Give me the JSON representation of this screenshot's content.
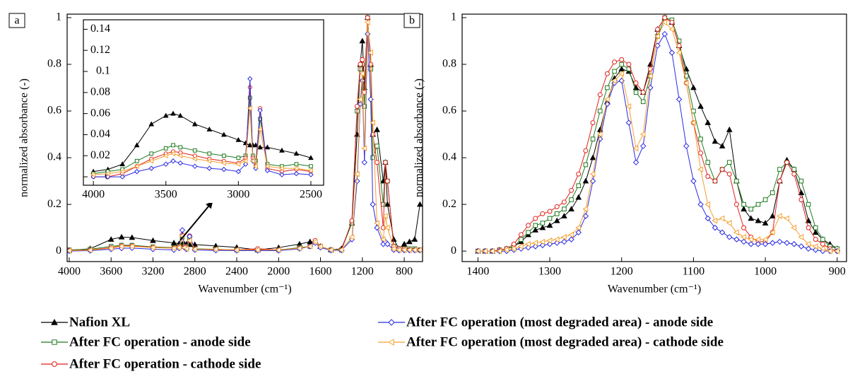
{
  "chart_data": [
    {
      "type": "line",
      "panel_label": "a",
      "x_label": "Wavenumber (cm⁻¹)",
      "y_label": "normalized absorbance (-)",
      "xlim": [
        4020,
        625
      ],
      "ylim": [
        -0.045,
        1.015
      ],
      "xticks": [
        4000,
        3600,
        3200,
        2800,
        2400,
        2000,
        1600,
        1200,
        800
      ],
      "yticks": [
        0,
        0.2,
        0.4,
        0.6,
        0.8,
        1
      ],
      "x": [
        4000,
        3800,
        3600,
        3500,
        3400,
        3200,
        3000,
        2950,
        2920,
        2900,
        2880,
        2850,
        2800,
        2600,
        2400,
        2200,
        2000,
        1800,
        1700,
        1650,
        1600,
        1500,
        1400,
        1300,
        1250,
        1220,
        1200,
        1180,
        1150,
        1120,
        1100,
        1060,
        1000,
        980,
        960,
        900,
        850,
        800,
        750,
        700,
        650
      ],
      "series": [
        {
          "name": "Nafion XL",
          "color": "#000000",
          "marker": "triangle",
          "values": [
            0.003,
            0.01,
            0.05,
            0.06,
            0.058,
            0.045,
            0.035,
            0.032,
            0.03,
            0.03,
            0.03,
            0.028,
            0.028,
            0.022,
            0.016,
            0.005,
            0.015,
            0.03,
            0.04,
            0.04,
            0.02,
            0.005,
            0.01,
            0.12,
            0.5,
            0.8,
            0.9,
            0.7,
            1.0,
            0.8,
            0.5,
            0.52,
            0.3,
            0.38,
            0.2,
            0.05,
            0.01,
            0.03,
            0.04,
            0.05,
            0.2
          ]
        },
        {
          "name": "After FC operation - anode side",
          "color": "#1f7a1f",
          "marker": "square",
          "values": [
            0.005,
            0.008,
            0.02,
            0.025,
            0.025,
            0.018,
            0.015,
            0.02,
            0.06,
            0.02,
            0.015,
            0.05,
            0.01,
            0.008,
            0.005,
            0.005,
            0.005,
            0.015,
            0.02,
            0.04,
            0.02,
            0.005,
            0.005,
            0.12,
            0.6,
            0.78,
            0.8,
            0.62,
            1.0,
            0.78,
            0.4,
            0.45,
            0.2,
            0.38,
            0.3,
            0.02,
            0.01,
            0.01,
            0.01,
            0.01,
            0.005
          ]
        },
        {
          "name": "After FC operation - cathode side",
          "color": "#e0201b",
          "marker": "circle",
          "values": [
            0.003,
            0.005,
            0.015,
            0.022,
            0.022,
            0.016,
            0.013,
            0.018,
            0.07,
            0.018,
            0.012,
            0.065,
            0.008,
            0.006,
            0.005,
            0.01,
            0.005,
            0.012,
            0.02,
            0.045,
            0.02,
            0.005,
            0.005,
            0.13,
            0.62,
            0.8,
            0.82,
            0.68,
            1.0,
            0.8,
            0.5,
            0.38,
            0.1,
            0.38,
            0.3,
            0.02,
            0.01,
            0.01,
            0.005,
            0.005,
            0.005
          ]
        },
        {
          "name": "After FC operation (most degraded area) - anode side",
          "color": "#2a2ae0",
          "marker": "diamond",
          "values": [
            0.0,
            0.002,
            0.008,
            0.012,
            0.013,
            0.008,
            0.005,
            0.012,
            0.09,
            0.015,
            0.008,
            0.063,
            0.005,
            0.003,
            0.002,
            0.002,
            0.002,
            0.01,
            0.02,
            0.035,
            0.015,
            0.003,
            0.003,
            0.05,
            0.3,
            0.63,
            0.73,
            0.38,
            0.93,
            0.65,
            0.2,
            0.1,
            0.03,
            0.04,
            0.03,
            0.005,
            0.003,
            0.003,
            0.003,
            0.003,
            0.003
          ]
        },
        {
          "name": "After FC operation (most degraded area) - cathode side",
          "color": "#f5a030",
          "marker": "left-triangle",
          "values": [
            0.002,
            0.004,
            0.012,
            0.02,
            0.02,
            0.015,
            0.012,
            0.015,
            0.065,
            0.015,
            0.01,
            0.045,
            0.008,
            0.008,
            0.005,
            0.005,
            0.005,
            0.012,
            0.02,
            0.04,
            0.02,
            0.005,
            0.005,
            0.06,
            0.33,
            0.65,
            0.76,
            0.44,
            0.98,
            0.85,
            0.55,
            0.12,
            0.05,
            0.15,
            0.1,
            0.01,
            0.005,
            0.005,
            0.005,
            0.005,
            0.005
          ]
        }
      ]
    },
    {
      "type": "line",
      "xlim": [
        4069,
        2412
      ],
      "ylim": [
        -0.008,
        0.149
      ],
      "xticks": [
        4000,
        3500,
        3000,
        2500
      ],
      "yticks": [
        0,
        0.02,
        0.04,
        0.06,
        0.08,
        0.1,
        0.12,
        0.14
      ],
      "x": [
        4000,
        3900,
        3800,
        3700,
        3600,
        3500,
        3450,
        3400,
        3300,
        3200,
        3100,
        3000,
        2950,
        2920,
        2900,
        2880,
        2850,
        2800,
        2700,
        2600,
        2500
      ],
      "series": [
        {
          "color": "#000000",
          "marker": "triangle",
          "values": [
            0.005,
            0.007,
            0.012,
            0.03,
            0.05,
            0.058,
            0.06,
            0.058,
            0.05,
            0.045,
            0.04,
            0.035,
            0.032,
            0.03,
            0.03,
            0.03,
            0.028,
            0.028,
            0.025,
            0.022,
            0.018
          ]
        },
        {
          "color": "#1f7a1f",
          "marker": "square",
          "values": [
            0.003,
            0.005,
            0.007,
            0.015,
            0.022,
            0.027,
            0.03,
            0.028,
            0.025,
            0.022,
            0.02,
            0.018,
            0.02,
            0.075,
            0.02,
            0.015,
            0.055,
            0.012,
            0.01,
            0.012,
            0.01
          ]
        },
        {
          "color": "#e0201b",
          "marker": "circle",
          "values": [
            0,
            0,
            0.003,
            0.01,
            0.017,
            0.022,
            0.024,
            0.023,
            0.02,
            0.017,
            0.015,
            0.013,
            0.018,
            0.085,
            0.018,
            0.01,
            0.065,
            0.008,
            0.005,
            0.007,
            0.005
          ]
        },
        {
          "color": "#2a2ae0",
          "marker": "diamond",
          "values": [
            0,
            0,
            0,
            0.005,
            0.008,
            0.012,
            0.015,
            0.013,
            0.01,
            0.008,
            0.007,
            0.005,
            0.012,
            0.093,
            0.015,
            0.008,
            0.063,
            0.006,
            0.002,
            0.003,
            0.002
          ]
        },
        {
          "color": "#f5a030",
          "marker": "left-triangle",
          "values": [
            0.002,
            0.003,
            0.005,
            0.01,
            0.015,
            0.02,
            0.022,
            0.02,
            0.017,
            0.015,
            0.013,
            0.012,
            0.015,
            0.065,
            0.015,
            0.01,
            0.045,
            0.01,
            0.008,
            0.008,
            0.006
          ]
        }
      ]
    },
    {
      "type": "line",
      "panel_label": "b",
      "x_label": "Wavenumber (cm⁻¹)",
      "y_label": "normalized absorbance (-)",
      "xlim": [
        1422,
        887
      ],
      "ylim": [
        -0.045,
        1.015
      ],
      "xticks": [
        1400,
        1300,
        1200,
        1100,
        1000,
        900
      ],
      "yticks": [
        0,
        0.2,
        0.4,
        0.6,
        0.8,
        1
      ],
      "x": [
        1400,
        1390,
        1380,
        1370,
        1360,
        1350,
        1340,
        1330,
        1320,
        1310,
        1300,
        1290,
        1280,
        1270,
        1260,
        1250,
        1240,
        1230,
        1220,
        1210,
        1200,
        1190,
        1180,
        1170,
        1160,
        1150,
        1140,
        1130,
        1120,
        1110,
        1100,
        1090,
        1080,
        1070,
        1060,
        1050,
        1040,
        1030,
        1020,
        1010,
        1000,
        990,
        980,
        970,
        960,
        950,
        940,
        930,
        920,
        910,
        900
      ],
      "series": [
        {
          "color": "#000000",
          "marker": "triangle",
          "values": [
            0,
            0,
            0,
            0.005,
            0.01,
            0.02,
            0.04,
            0.07,
            0.09,
            0.1,
            0.11,
            0.13,
            0.15,
            0.18,
            0.23,
            0.3,
            0.4,
            0.52,
            0.64,
            0.74,
            0.78,
            0.77,
            0.7,
            0.68,
            0.8,
            0.95,
            1.0,
            0.98,
            0.88,
            0.78,
            0.7,
            0.62,
            0.55,
            0.47,
            0.45,
            0.52,
            0.3,
            0.18,
            0.14,
            0.13,
            0.12,
            0.15,
            0.3,
            0.39,
            0.35,
            0.25,
            0.13,
            0.08,
            0.05,
            0.03,
            0.01
          ]
        },
        {
          "color": "#1f7a1f",
          "marker": "square",
          "values": [
            0,
            0,
            0,
            0.005,
            0.01,
            0.02,
            0.05,
            0.08,
            0.11,
            0.12,
            0.14,
            0.16,
            0.18,
            0.22,
            0.28,
            0.37,
            0.48,
            0.6,
            0.7,
            0.77,
            0.8,
            0.78,
            0.68,
            0.64,
            0.75,
            0.92,
            1.0,
            0.99,
            0.9,
            0.75,
            0.6,
            0.48,
            0.38,
            0.3,
            0.35,
            0.38,
            0.3,
            0.2,
            0.18,
            0.2,
            0.22,
            0.25,
            0.35,
            0.38,
            0.35,
            0.3,
            0.2,
            0.1,
            0.05,
            0.02,
            0.01
          ]
        },
        {
          "color": "#e0201b",
          "marker": "circle",
          "values": [
            0,
            0,
            0,
            0.005,
            0.01,
            0.03,
            0.07,
            0.11,
            0.14,
            0.16,
            0.17,
            0.19,
            0.21,
            0.26,
            0.33,
            0.43,
            0.55,
            0.67,
            0.76,
            0.81,
            0.82,
            0.8,
            0.72,
            0.68,
            0.78,
            0.95,
            1.0,
            0.98,
            0.88,
            0.72,
            0.55,
            0.42,
            0.32,
            0.3,
            0.35,
            0.33,
            0.2,
            0.1,
            0.06,
            0.04,
            0.04,
            0.08,
            0.3,
            0.38,
            0.33,
            0.22,
            0.1,
            0.05,
            0.03,
            0.01,
            0
          ]
        },
        {
          "color": "#2a2ae0",
          "marker": "diamond",
          "values": [
            0,
            0,
            0,
            0,
            0,
            0.005,
            0.01,
            0.015,
            0.02,
            0.025,
            0.03,
            0.035,
            0.04,
            0.05,
            0.08,
            0.15,
            0.3,
            0.48,
            0.63,
            0.72,
            0.73,
            0.55,
            0.38,
            0.45,
            0.7,
            0.88,
            0.93,
            0.85,
            0.65,
            0.45,
            0.3,
            0.2,
            0.14,
            0.1,
            0.08,
            0.06,
            0.05,
            0.04,
            0.03,
            0.03,
            0.03,
            0.035,
            0.04,
            0.035,
            0.03,
            0.02,
            0.01,
            0.005,
            0,
            0,
            0
          ]
        },
        {
          "color": "#f5a030",
          "marker": "left-triangle",
          "values": [
            0,
            0,
            0,
            0,
            0.005,
            0.01,
            0.02,
            0.03,
            0.035,
            0.04,
            0.045,
            0.05,
            0.06,
            0.07,
            0.1,
            0.18,
            0.33,
            0.5,
            0.65,
            0.73,
            0.76,
            0.62,
            0.44,
            0.5,
            0.75,
            0.92,
            0.98,
            0.95,
            0.85,
            0.72,
            0.55,
            0.35,
            0.2,
            0.13,
            0.14,
            0.12,
            0.08,
            0.06,
            0.05,
            0.05,
            0.05,
            0.08,
            0.15,
            0.14,
            0.1,
            0.06,
            0.03,
            0.02,
            0.01,
            0,
            0
          ]
        }
      ]
    }
  ]
}
